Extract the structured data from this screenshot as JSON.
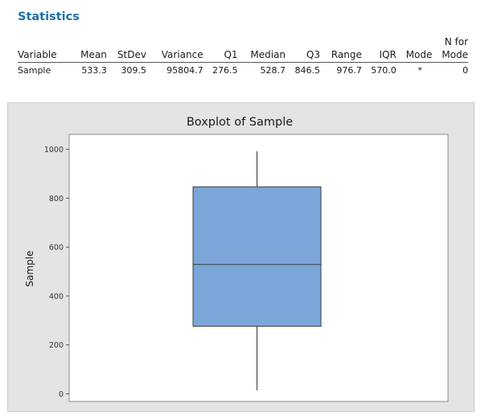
{
  "report": {
    "section_title": "Statistics"
  },
  "stats_table": {
    "columns": [
      "Variable",
      "Mean",
      "StDev",
      "Variance",
      "Q1",
      "Median",
      "Q3",
      "Range",
      "IQR",
      "Mode",
      "N for\nMode"
    ],
    "rows": [
      [
        "Sample",
        "533.3",
        "309.5",
        "95804.7",
        "276.5",
        "528.7",
        "846.5",
        "976.7",
        "570.0",
        "*",
        "0"
      ]
    ]
  },
  "chart_data": {
    "type": "boxplot",
    "title": "Boxplot of Sample",
    "xlabel": "",
    "ylabel": "Sample",
    "ylim": [
      0,
      1000
    ],
    "yticks": [
      0,
      200,
      400,
      600,
      800,
      1000
    ],
    "box": {
      "min": 15.0,
      "q1": 276.5,
      "median": 528.7,
      "q3": 846.5,
      "max": 991.7
    },
    "box_color": "#7ba6d8",
    "box_edge_color": "#3d3d3d"
  }
}
